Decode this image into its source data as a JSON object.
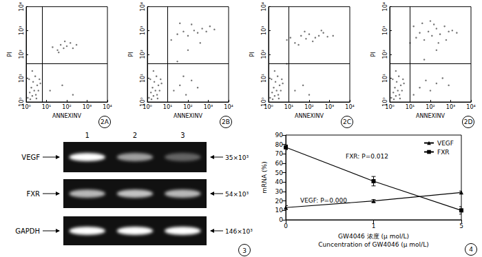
{
  "chart_data": [
    {
      "type": "scatter",
      "title": "2A",
      "x_label": "ANNEXINV",
      "y_label": "PI",
      "log": true,
      "grid": false,
      "color": "#555555",
      "xlim": [
        1,
        10000
      ],
      "ylim": [
        1,
        10000
      ],
      "xticks": [
        {
          "value": 1,
          "label": "10⁰"
        },
        {
          "value": 10,
          "label": "10¹"
        },
        {
          "value": 100,
          "label": "10²"
        },
        {
          "value": 1000,
          "label": "10³"
        },
        {
          "value": 10000,
          "label": "10⁴"
        }
      ],
      "yticks": [
        {
          "value": 1,
          "label": "10⁰"
        },
        {
          "value": 10,
          "label": "10¹"
        },
        {
          "value": 100,
          "label": "10²"
        },
        {
          "value": 1000,
          "label": "10³"
        },
        {
          "value": 10000,
          "label": "10⁴"
        }
      ],
      "quadrant": {
        "x": 6,
        "y": 40
      },
      "x": [
        1.2,
        1.5,
        2,
        2.5,
        3,
        1.8,
        3.5,
        2.2,
        4,
        1.4,
        2.8,
        5,
        1.6,
        3.2,
        4.5,
        2,
        20,
        35,
        50,
        70,
        100,
        150,
        200,
        300,
        40,
        80,
        15,
        60,
        200
      ],
      "values": [
        1.5,
        2.5,
        1.8,
        3,
        2,
        4,
        5,
        7,
        3,
        9,
        12,
        6,
        1.3,
        1.4,
        9,
        20,
        200,
        150,
        250,
        180,
        220,
        300,
        180,
        250,
        120,
        350,
        3,
        5,
        2
      ]
    },
    {
      "type": "scatter",
      "title": "2B",
      "x_label": "ANNEXINV",
      "y_label": "PI",
      "log": true,
      "grid": false,
      "color": "#555555",
      "xlim": [
        1,
        10000
      ],
      "ylim": [
        1,
        10000
      ],
      "xticks": [
        {
          "value": 1,
          "label": "10⁰"
        },
        {
          "value": 10,
          "label": "10¹"
        },
        {
          "value": 100,
          "label": "10²"
        },
        {
          "value": 1000,
          "label": "10³"
        },
        {
          "value": 10000,
          "label": "10⁴"
        }
      ],
      "yticks": [
        {
          "value": 1,
          "label": "10⁰"
        },
        {
          "value": 10,
          "label": "10¹"
        },
        {
          "value": 100,
          "label": "10²"
        },
        {
          "value": 1000,
          "label": "10³"
        },
        {
          "value": 10000,
          "label": "10⁴"
        }
      ],
      "quadrant": {
        "x": 10,
        "y": 40
      },
      "x": [
        1.2,
        1.5,
        2,
        2.5,
        3,
        1.8,
        3.5,
        2.2,
        4,
        1.4,
        2.8,
        5,
        1.6,
        3.2,
        4.5,
        2,
        15,
        30,
        60,
        100,
        200,
        300,
        500,
        800,
        1200,
        2000,
        40,
        150,
        20,
        40,
        80,
        150,
        300,
        60,
        30,
        100,
        400
      ],
      "values": [
        1.5,
        2.5,
        1.8,
        3,
        2,
        4,
        5,
        7,
        3,
        9,
        12,
        6,
        1.3,
        1.4,
        9,
        20,
        400,
        700,
        900,
        600,
        1000,
        800,
        1200,
        900,
        1500,
        1100,
        2000,
        1800,
        3,
        5,
        2,
        8,
        4,
        12,
        50,
        150,
        300
      ]
    },
    {
      "type": "scatter",
      "title": "2C",
      "x_label": "ANNEXINV",
      "y_label": "PI",
      "log": true,
      "grid": false,
      "color": "#555555",
      "xlim": [
        1,
        10000
      ],
      "ylim": [
        1,
        10000
      ],
      "xticks": [
        {
          "value": 1,
          "label": "10⁰"
        },
        {
          "value": 10,
          "label": "10¹"
        },
        {
          "value": 100,
          "label": "10²"
        },
        {
          "value": 1000,
          "label": "10³"
        },
        {
          "value": 10000,
          "label": "10⁴"
        }
      ],
      "yticks": [
        {
          "value": 1,
          "label": "10⁰"
        },
        {
          "value": 10,
          "label": "10¹"
        },
        {
          "value": 100,
          "label": "10²"
        },
        {
          "value": 1000,
          "label": "10³"
        },
        {
          "value": 10000,
          "label": "10⁴"
        }
      ],
      "quadrant": {
        "x": 10,
        "y": 40
      },
      "x": [
        1.2,
        1.5,
        2,
        2.5,
        3,
        1.8,
        3.5,
        2.2,
        4,
        1.4,
        2.8,
        5,
        1.6,
        3.2,
        4.5,
        2,
        8,
        12,
        20,
        40,
        70,
        100,
        200,
        300,
        500,
        800,
        1500,
        30,
        60,
        150,
        400,
        20,
        50,
        100,
        8
      ],
      "values": [
        1.5,
        2.5,
        1.8,
        3,
        2,
        4,
        5,
        7,
        3,
        9,
        12,
        6,
        1.3,
        1.4,
        9,
        20,
        400,
        500,
        300,
        600,
        450,
        700,
        500,
        600,
        800,
        550,
        600,
        250,
        900,
        350,
        1000,
        3,
        5,
        2,
        40
      ]
    },
    {
      "type": "scatter",
      "title": "2D",
      "x_label": "ANNEXINV",
      "y_label": "PI",
      "log": true,
      "grid": false,
      "color": "#555555",
      "xlim": [
        1,
        10000
      ],
      "ylim": [
        1,
        10000
      ],
      "xticks": [
        {
          "value": 1,
          "label": "10⁰"
        },
        {
          "value": 10,
          "label": "10¹"
        },
        {
          "value": 100,
          "label": "10²"
        },
        {
          "value": 1000,
          "label": "10³"
        },
        {
          "value": 10000,
          "label": "10⁴"
        }
      ],
      "yticks": [
        {
          "value": 1,
          "label": "10⁰"
        },
        {
          "value": 10,
          "label": "10¹"
        },
        {
          "value": 100,
          "label": "10²"
        },
        {
          "value": 1000,
          "label": "10³"
        },
        {
          "value": 10000,
          "label": "10⁴"
        }
      ],
      "quadrant": {
        "x": 10,
        "y": 40
      },
      "x": [
        1.2,
        1.5,
        2,
        2.5,
        3,
        1.8,
        3.5,
        2.2,
        4,
        1.4,
        2.8,
        5,
        1.6,
        3.2,
        4.5,
        2,
        10,
        20,
        30,
        50,
        80,
        120,
        200,
        300,
        500,
        800,
        1200,
        2000,
        40,
        100,
        250,
        600,
        15,
        150,
        15,
        30,
        60,
        100,
        200,
        400,
        800,
        50,
        200
      ],
      "values": [
        1.5,
        2.5,
        1.8,
        3,
        2,
        4,
        5,
        7,
        3,
        9,
        12,
        6,
        1.3,
        1.4,
        9,
        20,
        300,
        500,
        800,
        400,
        900,
        600,
        1200,
        700,
        1500,
        900,
        1000,
        800,
        2000,
        2500,
        300,
        400,
        1500,
        1800,
        2,
        4,
        8,
        3,
        6,
        10,
        5,
        60,
        150
      ]
    },
    {
      "type": "line",
      "title": "4",
      "x_label": [
        "GW4046 浓度 (μ mol/L)",
        "Cuncentration of GW4046 (μ mol/L)"
      ],
      "y_label": "mRNA (%)",
      "grid": false,
      "legend": "upper right",
      "categories": [
        "0",
        "1",
        "5"
      ],
      "ylim": [
        0,
        90
      ],
      "yticks": [
        0,
        10,
        20,
        30,
        40,
        50,
        60,
        70,
        80,
        90
      ],
      "series": [
        {
          "name": "VEGF",
          "color": "#000000",
          "marker": "triangle",
          "line_style": "solid",
          "values": [
            13,
            20,
            29
          ],
          "errors": [
            2,
            1.5,
            1.5
          ]
        },
        {
          "name": "FXR",
          "color": "#000000",
          "marker": "square",
          "line_style": "solid",
          "values": [
            77,
            41,
            10
          ],
          "errors": [
            2.5,
            5,
            4
          ]
        }
      ],
      "annotations": [
        "FXR: P=0.012",
        "VEGF: P=0.000"
      ]
    }
  ],
  "gel": {
    "title": "3",
    "lanes": [
      "1",
      "2",
      "3"
    ],
    "rows": [
      {
        "name": "VEGF",
        "size": "35×10³",
        "intensity": [
          1.0,
          0.6,
          0.35
        ]
      },
      {
        "name": "FXR",
        "size": "54×10³",
        "intensity": [
          0.7,
          0.75,
          0.7
        ]
      },
      {
        "name": "GAPDH",
        "size": "146×10³",
        "intensity": [
          1.0,
          1.0,
          1.0
        ]
      }
    ]
  }
}
